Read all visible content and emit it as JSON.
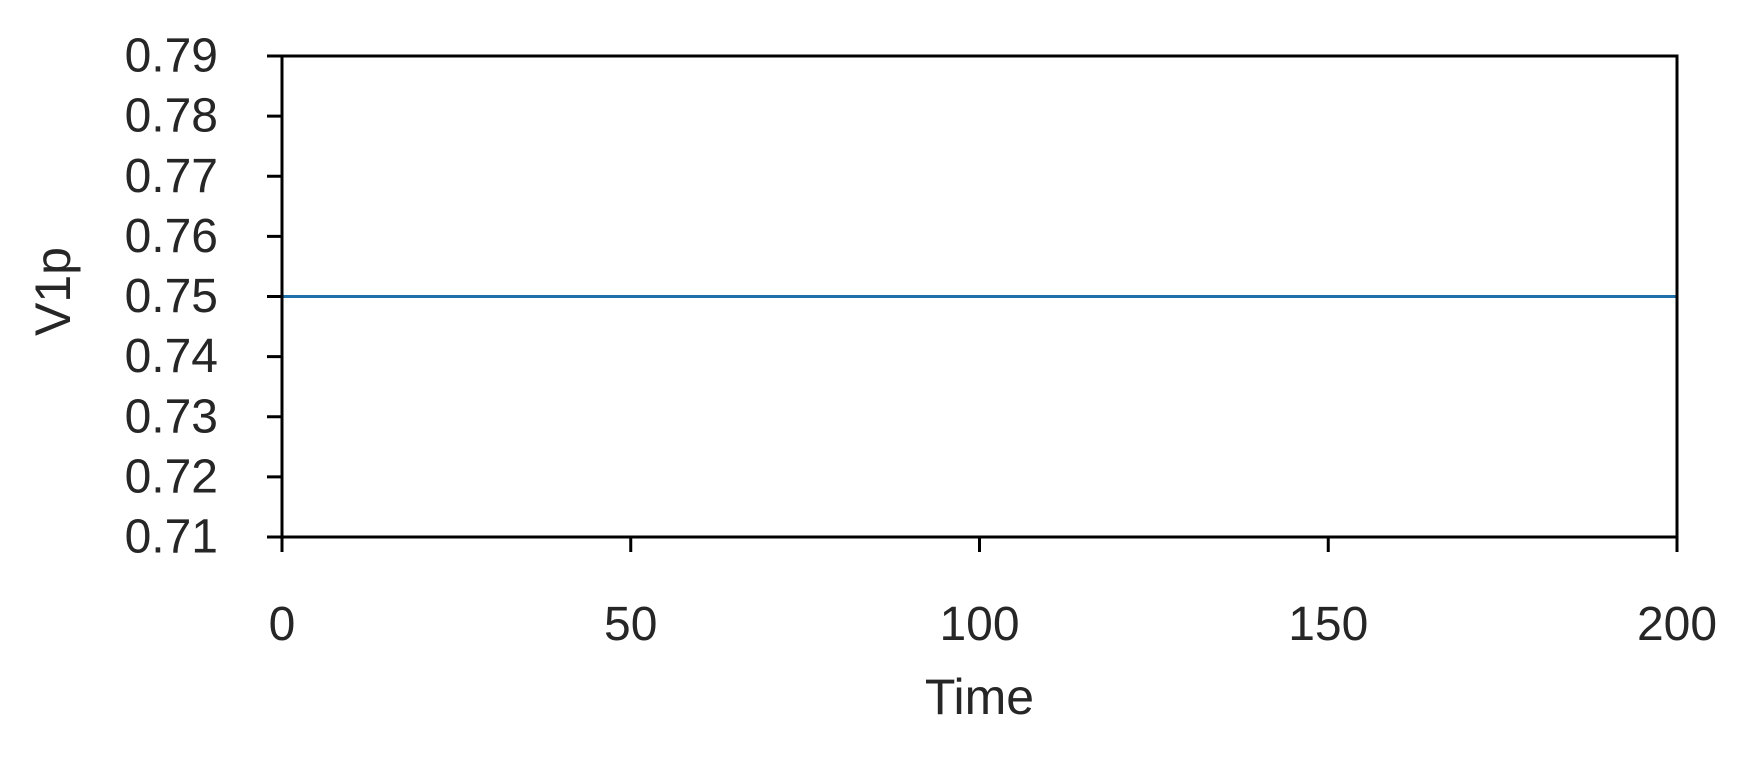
{
  "chart_data": {
    "type": "line",
    "title": "",
    "xlabel": "Time",
    "ylabel": "V1p",
    "xlim": [
      0,
      200
    ],
    "ylim": [
      0.71,
      0.79
    ],
    "xticks": [
      0,
      50,
      100,
      150,
      200
    ],
    "xtick_labels": [
      "0",
      "50",
      "100",
      "150",
      "200"
    ],
    "yticks": [
      0.71,
      0.72,
      0.73,
      0.74,
      0.75,
      0.76,
      0.77,
      0.78,
      0.79
    ],
    "ytick_labels": [
      "0.71",
      "0.72",
      "0.73",
      "0.74",
      "0.75",
      "0.76",
      "0.77",
      "0.78",
      "0.79"
    ],
    "grid": false,
    "legend": "none",
    "series": [
      {
        "x": [
          0,
          200
        ],
        "y": [
          0.75,
          0.75
        ],
        "color": "#1f6fa8"
      }
    ]
  }
}
